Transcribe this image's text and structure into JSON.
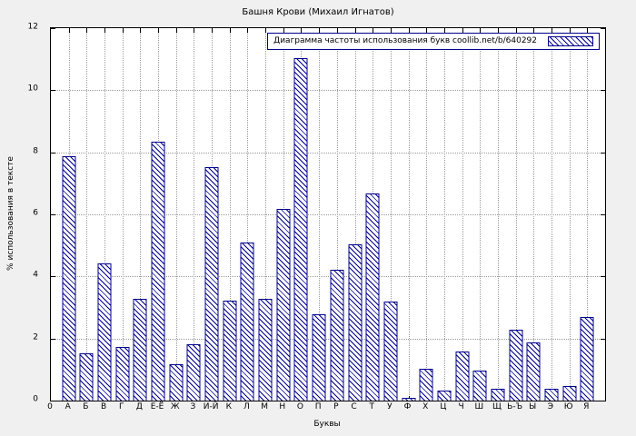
{
  "chart_data": {
    "type": "bar",
    "title": "Башня Крови (Михаил Игнатов)",
    "legend": "Диаграмма частоты использования букв coollib.net/b/640292",
    "legend_position": "top-right",
    "xlabel": "Буквы",
    "ylabel": "% использования в тексте",
    "ylim": [
      0,
      12
    ],
    "ytick_step": 2,
    "origin_label": "0",
    "grid": true,
    "colors": {
      "bar_line": "#00008b",
      "grid": "#9a9a9a",
      "background": "#f0f0f0",
      "plot_background": "#ffffff"
    },
    "categories": [
      "А",
      "Б",
      "В",
      "Г",
      "Д",
      "Е-Ё",
      "Ж",
      "З",
      "И-Й",
      "К",
      "Л",
      "М",
      "Н",
      "О",
      "П",
      "Р",
      "С",
      "Т",
      "У",
      "Ф",
      "Х",
      "Ц",
      "Ч",
      "Ш",
      "Щ",
      "Ь-Ъ",
      "Ы",
      "Э",
      "Ю",
      "Я"
    ],
    "values": [
      7.85,
      1.5,
      4.4,
      1.7,
      3.25,
      8.3,
      1.15,
      1.8,
      7.5,
      3.2,
      5.05,
      3.25,
      6.15,
      11.0,
      2.75,
      4.2,
      5.0,
      6.65,
      3.15,
      0.05,
      1.0,
      0.3,
      1.55,
      0.95,
      0.35,
      2.25,
      1.85,
      0.35,
      0.45,
      2.65
    ]
  }
}
